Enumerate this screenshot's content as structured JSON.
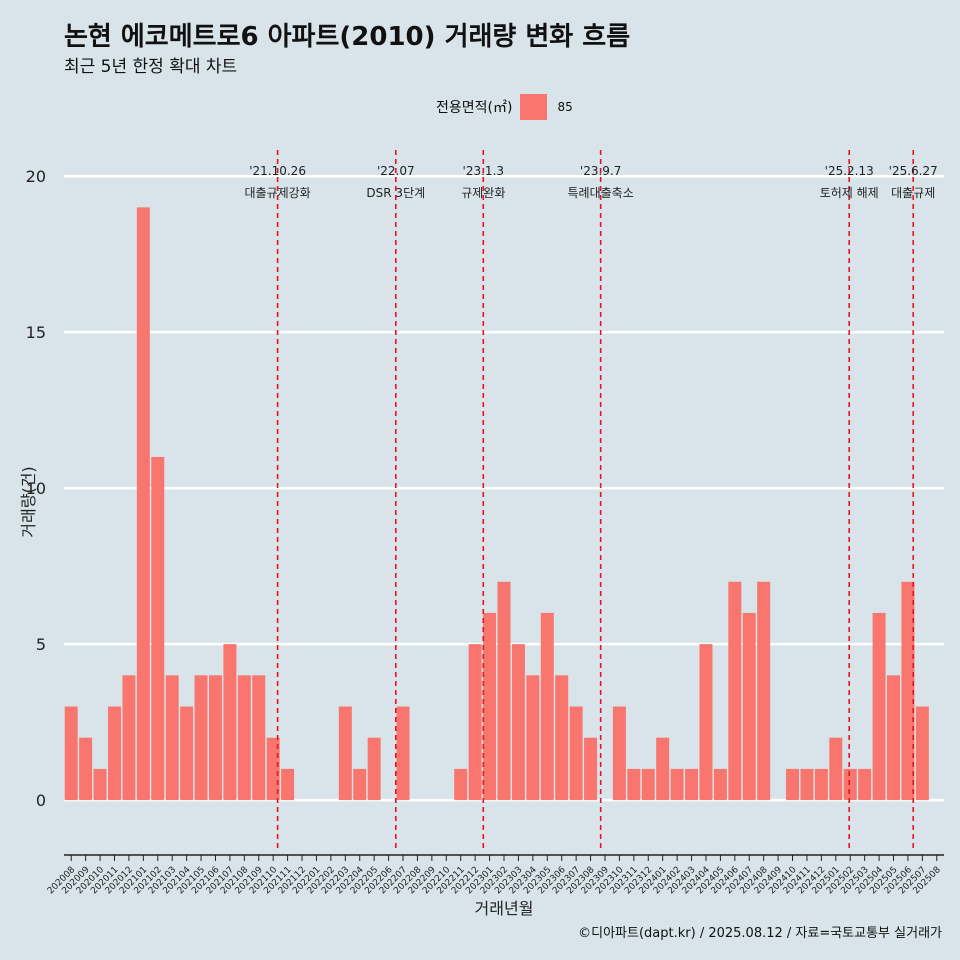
{
  "title": "논현 에코메트로6 아파트(2010) 거래량 변화 흐름",
  "subtitle": "최근 5년 한정 확대 차트",
  "legend_title": "전용면적(㎡)",
  "caption": "©디아파트(dapt.kr) / 2025.08.12 / 자료=국토교통부 실거래가",
  "chart_data": {
    "type": "bar",
    "xlabel": "거래년월",
    "ylabel": "거래량(건)",
    "ylim": [
      -1.6,
      21
    ],
    "yticks": [
      0,
      5,
      10,
      15,
      20
    ],
    "grid": true,
    "legend_position": "top",
    "bar_color": "#f8766d",
    "series": [
      {
        "name": "85"
      }
    ],
    "categories": [
      "202008",
      "202009",
      "202010",
      "202011",
      "202012",
      "202101",
      "202102",
      "202103",
      "202104",
      "202105",
      "202106",
      "202107",
      "202108",
      "202109",
      "202110",
      "202111",
      "202112",
      "202201",
      "202202",
      "202203",
      "202204",
      "202205",
      "202206",
      "202207",
      "202208",
      "202209",
      "202210",
      "202211",
      "202212",
      "202301",
      "202302",
      "202303",
      "202304",
      "202305",
      "202306",
      "202307",
      "202308",
      "202309",
      "202310",
      "202311",
      "202312",
      "202401",
      "202402",
      "202403",
      "202404",
      "202405",
      "202406",
      "202407",
      "202408",
      "202409",
      "202410",
      "202411",
      "202412",
      "202501",
      "202502",
      "202503",
      "202504",
      "202505",
      "202506",
      "202507",
      "202508"
    ],
    "bars": [
      {
        "month": "202008",
        "value": 3
      },
      {
        "month": "202009",
        "value": 2
      },
      {
        "month": "202010",
        "value": 1
      },
      {
        "month": "202011",
        "value": 3
      },
      {
        "month": "202012",
        "value": 4
      },
      {
        "month": "202101",
        "value": 19
      },
      {
        "month": "202102",
        "value": 11
      },
      {
        "month": "202103",
        "value": 4
      },
      {
        "month": "202104",
        "value": 3
      },
      {
        "month": "202105",
        "value": 4
      },
      {
        "month": "202106",
        "value": 4
      },
      {
        "month": "202107",
        "value": 5
      },
      {
        "month": "202108",
        "value": 4
      },
      {
        "month": "202109",
        "value": 4
      },
      {
        "month": "202110",
        "value": 2
      },
      {
        "month": "202111",
        "value": 1
      },
      {
        "month": "202203",
        "value": 3
      },
      {
        "month": "202204",
        "value": 1
      },
      {
        "month": "202205",
        "value": 2
      },
      {
        "month": "202207",
        "value": 3
      },
      {
        "month": "202211",
        "value": 1
      },
      {
        "month": "202212",
        "value": 5
      },
      {
        "month": "202301",
        "value": 6
      },
      {
        "month": "202302",
        "value": 7
      },
      {
        "month": "202303",
        "value": 5
      },
      {
        "month": "202304",
        "value": 4
      },
      {
        "month": "202305",
        "value": 6
      },
      {
        "month": "202306",
        "value": 4
      },
      {
        "month": "202307",
        "value": 3
      },
      {
        "month": "202308",
        "value": 2
      },
      {
        "month": "202310",
        "value": 3
      },
      {
        "month": "202311",
        "value": 1
      },
      {
        "month": "202312",
        "value": 1
      },
      {
        "month": "202401",
        "value": 2
      },
      {
        "month": "202402",
        "value": 1
      },
      {
        "month": "202403",
        "value": 1
      },
      {
        "month": "202404",
        "value": 5
      },
      {
        "month": "202405",
        "value": 1
      },
      {
        "month": "202406",
        "value": 7
      },
      {
        "month": "202407",
        "value": 6
      },
      {
        "month": "202408",
        "value": 7
      },
      {
        "month": "202410",
        "value": 1
      },
      {
        "month": "202411",
        "value": 1
      },
      {
        "month": "202412",
        "value": 1
      },
      {
        "month": "202501",
        "value": 2
      },
      {
        "month": "202502",
        "value": 1
      },
      {
        "month": "202503",
        "value": 1
      },
      {
        "month": "202504",
        "value": 6
      },
      {
        "month": "202505",
        "value": 4
      },
      {
        "month": "202506",
        "value": 7
      },
      {
        "month": "202507",
        "value": 3
      }
    ],
    "events": [
      {
        "date": "2021-10-26",
        "label1": "'21.10.26",
        "label2": "대출규제강화"
      },
      {
        "date": "2022-07-01",
        "label1": "'22.07",
        "label2": "DSR 3단계"
      },
      {
        "date": "2023-01-03",
        "label1": "'23.1.3",
        "label2": "규제완화"
      },
      {
        "date": "2023-09-07",
        "label1": "'23.9.7",
        "label2": "특례대출축소"
      },
      {
        "date": "2025-02-13",
        "label1": "'25.2.13",
        "label2": "토허제 해제"
      },
      {
        "date": "2025-06-27",
        "label1": "'25.6.27",
        "label2": "대출규제"
      }
    ]
  }
}
